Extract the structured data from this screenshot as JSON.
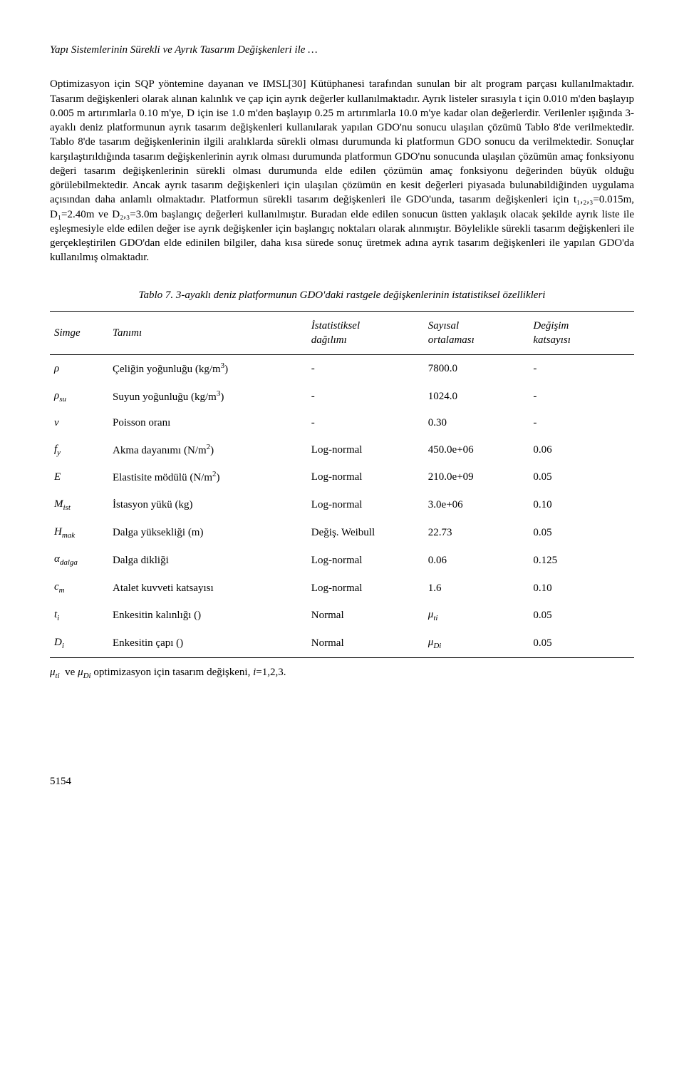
{
  "header": {
    "running_title": "Yapı Sistemlerinin Sürekli ve Ayrık Tasarım Değişkenleri ile …"
  },
  "body": {
    "paragraph": "Optimizasyon için SQP yöntemine dayanan ve IMSL[30] Kütüphanesi tarafından sunulan bir alt program parçası kullanılmaktadır. Tasarım değişkenleri olarak alınan kalınlık ve çap için ayrık değerler kullanılmaktadır. Ayrık listeler sırasıyla t için 0.010 m'den başlayıp 0.005 m artırımlarla 0.10 m'ye, D için ise 1.0 m'den başlayıp 0.25 m artırımlarla 10.0 m'ye kadar olan değerlerdir. Verilenler ışığında 3-ayaklı deniz platformunun ayrık tasarım değişkenleri kullanılarak yapılan GDO'nu sonucu ulaşılan çözümü Tablo 8'de verilmektedir. Tablo 8'de tasarım değişkenlerinin ilgili aralıklarda sürekli olması durumunda ki platformun GDO sonucu da verilmektedir. Sonuçlar karşılaştırıldığında tasarım değişkenlerinin ayrık olması durumunda platformun GDO'nu sonucunda ulaşılan çözümün amaç fonksiyonu değeri tasarım değişkenlerinin sürekli olması durumunda elde edilen çözümün amaç fonksiyonu değerinden büyük olduğu görülebilmektedir. Ancak ayrık tasarım değişkenleri için ulaşılan çözümün en kesit değerleri piyasada bulunabildiğinden uygulama açısından daha anlamlı olmaktadır. Platformun sürekli tasarım değişkenleri ile GDO'unda, tasarım değişkenleri için t₁,₂,₃=0.015m, D₁=2.40m ve D₂,₃=3.0m başlangıç değerleri kullanılmıştır. Buradan elde edilen sonucun üstten yaklaşık olacak şekilde ayrık liste ile eşleşmesiyle elde edilen değer ise ayrık değişkenler için başlangıç noktaları olarak alınmıştır. Böylelikle sürekli tasarım değişkenleri ile gerçekleştirilen GDO'dan elde edinilen bilgiler, daha kısa sürede sonuç üretmek adına ayrık tasarım değişkenleri ile yapılan GDO'da kullanılmış olmaktadır."
  },
  "table": {
    "caption": "Tablo 7. 3-ayaklı deniz platformunun GDO'daki rastgele değişkenlerinin istatistiksel özellikleri",
    "headers": {
      "col1": "Simge",
      "col2": "Tanımı",
      "col3_line1": "İstatistiksel",
      "col3_line2": "dağılımı",
      "col4_line1": "Sayısal",
      "col4_line2": "ortalaması",
      "col5_line1": "Değişim",
      "col5_line2": "katsayısı"
    },
    "rows": [
      {
        "sym_html": "<span class='sym'>ρ</span>",
        "desc_html": "Çeliğin yoğunluğu (kg/m<span class='sup'>3</span>)",
        "dist": "-",
        "mean": "7800.0",
        "cov": "-"
      },
      {
        "sym_html": "<span class='sym'>ρ</span><span class='sub'>su</span>",
        "desc_html": "Suyun yoğunluğu (kg/m<span class='sup'>3</span>)",
        "dist": "-",
        "mean": "1024.0",
        "cov": "-"
      },
      {
        "sym_html": "<span class='sym'>v</span>",
        "desc_html": "Poisson oranı",
        "dist": "-",
        "mean": "0.30",
        "cov": "-"
      },
      {
        "sym_html": "<span class='sym'>f</span><span class='sub'>y</span>",
        "desc_html": "Akma dayanımı (N/m<span class='sup'>2</span>)",
        "dist": "Log-normal",
        "mean": "450.0e+06",
        "cov": "0.06"
      },
      {
        "sym_html": "<span class='sym'>E</span>",
        "desc_html": "Elastisite mödülü (N/m<span class='sup'>2</span>)",
        "dist": "Log-normal",
        "mean": "210.0e+09",
        "cov": "0.05"
      },
      {
        "sym_html": "<span class='sym'>M</span><span class='sub'>ist</span>",
        "desc_html": "İstasyon yükü (kg)",
        "dist": "Log-normal",
        "mean": "3.0e+06",
        "cov": "0.10"
      },
      {
        "sym_html": "<span class='sym'>H</span><span class='sub'>mak</span>",
        "desc_html": "Dalga yüksekliği (m)",
        "dist": "Değiş. Weibull",
        "mean": "22.73",
        "cov": "0.05"
      },
      {
        "sym_html": "<span class='sym'>α</span><span class='sub'>dalga</span>",
        "desc_html": "Dalga dikliği",
        "dist": "Log-normal",
        "mean": "0.06",
        "cov": "0.125"
      },
      {
        "sym_html": "<span class='sym'>c</span><span class='sub'>m</span>",
        "desc_html": "Atalet kuvveti katsayısı",
        "dist": "Log-normal",
        "mean": "1.6",
        "cov": "0.10"
      },
      {
        "sym_html": "<span class='sym'>t</span><span class='sub'>i</span>",
        "desc_html": "Enkesitin kalınlığı ()",
        "dist": "Normal",
        "mean": "<span class='sym'>μ</span><span class='sub'>ti</span>",
        "cov": "0.05"
      },
      {
        "sym_html": "<span class='sym'>D</span><span class='sub'>i</span>",
        "desc_html": "Enkesitin çapı ()",
        "dist": "Normal",
        "mean": "<span class='sym'>μ</span><span class='sub'>Di</span>",
        "cov": "0.05"
      }
    ],
    "footnote_html": "<span class='sym'>μ</span><span class='sub'>ti</span>&nbsp; ve <span class='sym'>μ</span><span class='sub'>Di</span> optimizasyon için tasarım değişkeni, <span class='sym'>i</span>=1,2,3."
  },
  "page_number": "5154"
}
